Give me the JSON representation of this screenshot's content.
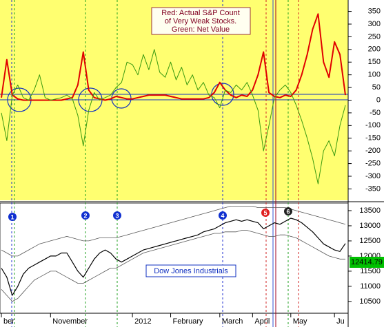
{
  "chart_data": [
    {
      "type": "line",
      "annotation": [
        "Red: Actual S&P Count",
        "of Very Weak Stocks.",
        "Green: Net Value"
      ],
      "ylim": [
        -395,
        395
      ],
      "yticks": [
        350,
        300,
        250,
        200,
        150,
        100,
        50,
        0,
        -50,
        -100,
        -150,
        -200,
        -250,
        -300,
        -350
      ],
      "background": "#ffff70",
      "series": [
        {
          "color": "#e00000",
          "width": 2,
          "values": [
            10,
            160,
            20,
            5,
            0,
            0,
            0,
            0,
            0,
            0,
            0,
            0,
            5,
            10,
            60,
            190,
            40,
            10,
            5,
            0,
            5,
            15,
            10,
            5,
            5,
            10,
            15,
            20,
            20,
            20,
            20,
            15,
            10,
            5,
            5,
            5,
            5,
            5,
            10,
            30,
            70,
            40,
            20,
            10,
            20,
            15,
            40,
            100,
            190,
            30,
            15,
            10,
            20,
            15,
            40,
            100,
            180,
            280,
            340,
            150,
            90,
            230,
            180,
            20
          ]
        },
        {
          "color": "#3a9a10",
          "width": 1,
          "values": [
            -50,
            -160,
            20,
            60,
            10,
            0,
            40,
            100,
            10,
            0,
            5,
            10,
            20,
            5,
            -60,
            -180,
            -40,
            30,
            0,
            10,
            20,
            50,
            70,
            150,
            140,
            100,
            180,
            120,
            200,
            110,
            90,
            150,
            80,
            130,
            60,
            100,
            40,
            70,
            20,
            10,
            -30,
            40,
            30,
            60,
            40,
            70,
            20,
            -40,
            -200,
            -100,
            10,
            40,
            60,
            30,
            -20,
            -80,
            -150,
            -230,
            -330,
            -200,
            -160,
            -220,
            -100,
            -20
          ]
        }
      ]
    },
    {
      "type": "line",
      "ylim": [
        10110,
        13750
      ],
      "yticks": [
        13500,
        13000,
        12500,
        12000,
        11500,
        11000,
        10500
      ],
      "background": "#ffffff",
      "markers": [
        "1",
        "2",
        "3",
        "4",
        "5",
        "6"
      ],
      "xticks": [
        {
          "value": 0,
          "label": "ber"
        },
        {
          "value": 9,
          "label": "November"
        },
        {
          "value": 24,
          "label": "2012"
        },
        {
          "value": 31,
          "label": "February"
        },
        {
          "value": 40,
          "label": "March"
        },
        {
          "value": 46,
          "label": "April"
        },
        {
          "value": 53,
          "label": "May"
        },
        {
          "value": 61,
          "label": "Ju"
        }
      ],
      "series": [
        {
          "name": "Dow Jones Industrials",
          "color": "#000000",
          "width": 1.2,
          "values": [
            11600,
            11300,
            10700,
            11000,
            11400,
            11600,
            11700,
            11800,
            11900,
            12000,
            12000,
            12100,
            12100,
            11800,
            11500,
            11300,
            11600,
            11900,
            12100,
            12200,
            12100,
            11900,
            11800,
            11900,
            12000,
            12100,
            12200,
            12250,
            12300,
            12350,
            12400,
            12450,
            12500,
            12550,
            12600,
            12650,
            12700,
            12800,
            12850,
            12900,
            13000,
            13100,
            13150,
            13200,
            13150,
            13200,
            13150,
            13100,
            12900,
            13000,
            13100,
            13050,
            13150,
            13250,
            13200,
            13100,
            12950,
            12800,
            12600,
            12400,
            12300,
            12200,
            12150,
            12414.79
          ]
        },
        {
          "color": "#555555",
          "width": 0.8,
          "values": [
            12200,
            12100,
            12000,
            12000,
            12100,
            12200,
            12300,
            12400,
            12450,
            12500,
            12550,
            12600,
            12650,
            12600,
            12550,
            12500,
            12500,
            12550,
            12600,
            12600,
            12600,
            12600,
            12650,
            12700,
            12750,
            12800,
            12850,
            12900,
            12950,
            13000,
            13050,
            13100,
            13150,
            13200,
            13250,
            13300,
            13350,
            13400,
            13450,
            13500,
            13550,
            13600,
            13650,
            13650,
            13650,
            13650,
            13650,
            13600,
            13600,
            13600,
            13600,
            13600,
            13600,
            13550,
            13500,
            13450,
            13400,
            13350,
            13300,
            13250,
            13200,
            13150,
            13100,
            13050
          ]
        },
        {
          "color": "#555555",
          "width": 0.8,
          "values": [
            10900,
            10700,
            10500,
            10600,
            10800,
            11000,
            11200,
            11300,
            11400,
            11500,
            11500,
            11400,
            11300,
            11200,
            11100,
            11100,
            11200,
            11300,
            11400,
            11500,
            11600,
            11600,
            11700,
            11800,
            11900,
            12000,
            12100,
            12150,
            12200,
            12250,
            12300,
            12350,
            12400,
            12450,
            12500,
            12550,
            12600,
            12650,
            12700,
            12750,
            12750,
            12800,
            12800,
            12800,
            12850,
            12850,
            12800,
            12750,
            12700,
            12650,
            12650,
            12700,
            12700,
            12650,
            12600,
            12500,
            12400,
            12300,
            12200,
            12100,
            12000,
            11950,
            11900,
            11900
          ]
        }
      ]
    }
  ]
}
